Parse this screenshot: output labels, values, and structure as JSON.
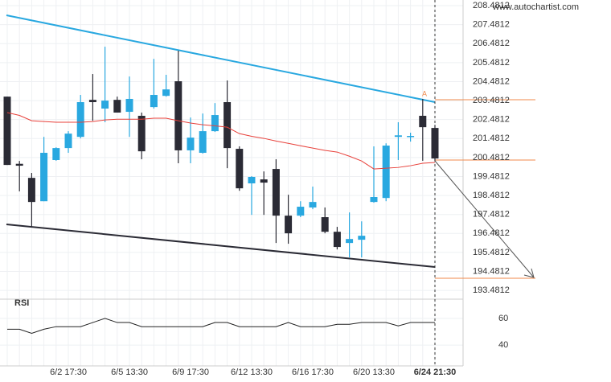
{
  "chart_data": {
    "type": "candlestick",
    "source": "www.autochartist.com",
    "annotation": "A",
    "categories": [
      null,
      null,
      null,
      null,
      null,
      "6/2 17:30",
      null,
      null,
      null,
      null,
      "6/5 13:30",
      null,
      null,
      null,
      null,
      "6/9 17:30",
      null,
      null,
      null,
      null,
      "6/12 13:30",
      null,
      null,
      null,
      null,
      "6/16 17:30",
      null,
      null,
      null,
      null,
      "6/20 13:30",
      null,
      null,
      null,
      null,
      "6/24 21:30"
    ],
    "open": [
      203.69,
      200.15,
      199.41,
      198.18,
      200.35,
      200.98,
      201.57,
      203.52,
      203.06,
      203.52,
      202.89,
      202.68,
      203.14,
      203.73,
      204.5,
      200.86,
      200.73,
      201.87,
      203.4,
      200.94,
      199.12,
      199.33,
      199.88,
      197.42,
      197.42,
      197.85,
      197.34,
      196.57,
      195.98,
      196.15,
      198.14,
      198.35,
      201.57,
      201.6,
      202.68,
      202.04
    ],
    "high": [
      203.69,
      200.3,
      199.67,
      201.57,
      201.02,
      201.87,
      203.78,
      204.88,
      206.32,
      203.69,
      204.75,
      202.85,
      205.68,
      204.84,
      206.11,
      202.59,
      202.8,
      203.35,
      204.54,
      201.07,
      199.5,
      199.75,
      200.39,
      198.52,
      198.18,
      198.95,
      197.85,
      196.83,
      197.59,
      197.12,
      201.07,
      201.23,
      202.34,
      201.79,
      203.57,
      202.2
    ],
    "low": [
      200.09,
      198.7,
      196.83,
      198.18,
      200.31,
      200.73,
      201.49,
      202.42,
      202.34,
      202.85,
      201.57,
      200.39,
      203.06,
      203.69,
      200.18,
      200.18,
      200.69,
      201.83,
      199.92,
      198.73,
      197.46,
      197.46,
      195.98,
      195.94,
      197.34,
      197.76,
      196.49,
      195.64,
      195.22,
      195.22,
      198.1,
      198.18,
      200.35,
      201.32,
      200.31,
      200.31
    ],
    "close": [
      200.09,
      200.05,
      198.14,
      200.73,
      200.98,
      201.74,
      203.4,
      203.4,
      203.48,
      202.85,
      203.57,
      200.81,
      203.78,
      204.07,
      200.86,
      201.53,
      201.87,
      202.72,
      200.98,
      198.86,
      199.46,
      199.16,
      197.42,
      196.49,
      197.89,
      198.14,
      196.57,
      195.77,
      196.19,
      196.36,
      198.4,
      201.11,
      201.65,
      201.62,
      202.08,
      200.43
    ],
    "up_color": "#29a8e0",
    "down_color": "#2b2b35",
    "moving_average": {
      "color": "#e8403a",
      "values": [
        202.85,
        202.7,
        202.42,
        202.38,
        202.34,
        202.34,
        202.34,
        202.38,
        202.46,
        202.5,
        202.5,
        202.5,
        202.55,
        202.55,
        202.42,
        202.3,
        202.21,
        202.15,
        202.08,
        201.74,
        201.6,
        201.49,
        201.35,
        201.23,
        201.1,
        200.98,
        200.86,
        200.77,
        200.55,
        200.3,
        199.88,
        199.92,
        199.96,
        200.05,
        200.18,
        200.22
      ]
    },
    "ylim": [
      193.02,
      208.78
    ],
    "yticks": [
      208.4812,
      207.4812,
      206.4812,
      205.4812,
      204.4812,
      203.4812,
      202.4812,
      201.4812,
      200.4812,
      199.4812,
      198.4812,
      197.4812,
      196.4812,
      195.4812,
      194.4812,
      193.4812
    ],
    "grid": true,
    "rsi": {
      "name": "RSI",
      "color": "#222",
      "values": [
        51.9,
        51.9,
        48.8,
        51.9,
        53.8,
        53.8,
        53.8,
        56.9,
        60,
        56.9,
        56.9,
        53.8,
        53.8,
        53.8,
        53.8,
        53.8,
        53.8,
        56.9,
        56.9,
        53.8,
        53.8,
        53.8,
        53.8,
        56.9,
        53.8,
        53.8,
        53.8,
        55.6,
        55.6,
        56.9,
        56.9,
        56.9,
        54.4,
        56.9,
        56.9,
        56.9
      ],
      "ylim": [
        24.4,
        74.4
      ],
      "yticks": [
        60,
        40
      ]
    }
  }
}
